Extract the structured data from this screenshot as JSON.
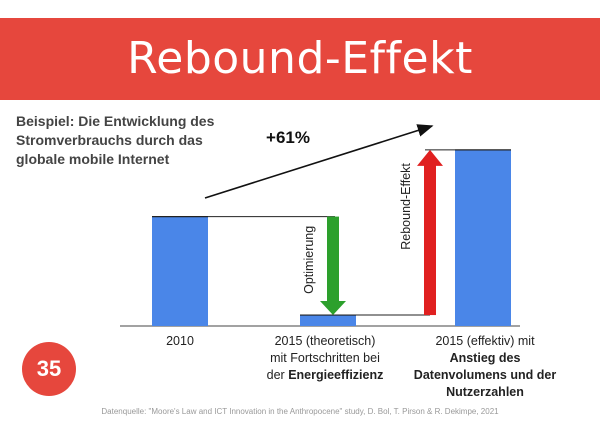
{
  "title": "Rebound-Effekt",
  "subtitle_lines": [
    "Beispiel: Die Entwicklung des",
    "Stromverbrauchs durch das",
    "globale mobile Internet"
  ],
  "badge_number": "35",
  "source": "Datenquelle: \"Moore's Law and ICT Innovation in the Anthropocene\" study, D. Bol, T. Pirson & R. Dekimpe, 2021",
  "colors": {
    "accent_red": "#e6473d",
    "bar_blue": "#4a86e8",
    "arrow_green": "#2ca02c",
    "arrow_red": "#e02020"
  },
  "chart_data": {
    "type": "bar",
    "categories": [
      "2010",
      "2015 (theoretisch) mit Fortschritten bei der Energieeffizienz",
      "2015 (effektiv) mit Anstieg des Datenvolumens und der Nutzerzahlen"
    ],
    "values": [
      100,
      10,
      161
    ],
    "category_labels": [
      {
        "lines": [
          "2010"
        ],
        "bold_from": 1
      },
      {
        "lines": [
          "2015 (theoretisch)",
          "mit Fortschritten bei",
          "der "
        ],
        "bold_tail": "Energieeffizienz"
      },
      {
        "lines": [
          "2015 (effektiv) mit"
        ],
        "bold_lines": [
          "Anstieg des",
          "Datenvolumens und der",
          "Nutzerzahlen"
        ]
      }
    ],
    "annotations": {
      "growth": "+61%",
      "optimization": "Optimierung",
      "rebound": "Rebound-Effekt"
    },
    "ylim": [
      0,
      170
    ],
    "grid": false,
    "axes_visible": false
  }
}
